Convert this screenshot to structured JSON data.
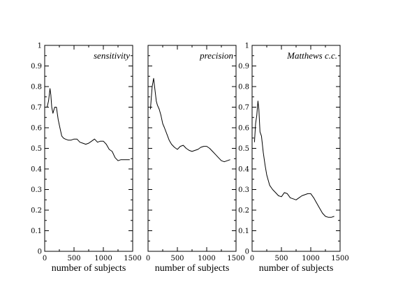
{
  "chart_data": [
    {
      "type": "line",
      "title": "sensitivity",
      "xlabel": "number of subjects",
      "ylabel": "",
      "xlim": [
        0,
        1500
      ],
      "ylim": [
        0,
        1
      ],
      "xticks": [
        0,
        500,
        1000,
        1500
      ],
      "xtick_labels": [
        "0",
        "500",
        "1000",
        "1500"
      ],
      "yticks": [
        0,
        0.1,
        0.2,
        0.3,
        0.4,
        0.5,
        0.6,
        0.7,
        0.8,
        0.9,
        1
      ],
      "ytick_labels": [
        "0",
        "0.1",
        "0.2",
        "0.3",
        "0.4",
        "0.5",
        "0.6",
        "0.7",
        "0.8",
        "0.9",
        "1"
      ],
      "x": [
        40,
        65,
        90,
        105,
        120,
        140,
        170,
        200,
        230,
        260,
        290,
        320,
        350,
        400,
        450,
        500,
        550,
        600,
        650,
        700,
        750,
        800,
        850,
        900,
        950,
        1000,
        1050,
        1100,
        1150,
        1200,
        1250,
        1300,
        1350,
        1400,
        1450
      ],
      "y": [
        0.7,
        0.73,
        0.79,
        0.76,
        0.7,
        0.67,
        0.7,
        0.7,
        0.64,
        0.6,
        0.56,
        0.55,
        0.545,
        0.54,
        0.54,
        0.545,
        0.545,
        0.53,
        0.525,
        0.52,
        0.525,
        0.535,
        0.545,
        0.53,
        0.535,
        0.535,
        0.52,
        0.495,
        0.485,
        0.455,
        0.44,
        0.445,
        0.445,
        0.445,
        0.445
      ],
      "grid": false
    },
    {
      "type": "line",
      "title": "precision",
      "xlabel": "number of subjects",
      "ylabel": "",
      "xlim": [
        0,
        1500
      ],
      "ylim": [
        0,
        1
      ],
      "xticks": [
        0,
        500,
        1000,
        1500
      ],
      "xtick_labels": [
        "0",
        "500",
        "1000",
        "1500"
      ],
      "yticks": [
        0,
        0.1,
        0.2,
        0.3,
        0.4,
        0.5,
        0.6,
        0.7,
        0.8,
        0.9,
        1
      ],
      "ytick_labels": [
        "",
        "",
        "",
        "",
        "",
        "",
        "",
        "",
        "",
        "",
        ""
      ],
      "x": [
        40,
        70,
        95,
        115,
        140,
        160,
        190,
        220,
        250,
        280,
        320,
        360,
        400,
        450,
        500,
        550,
        600,
        650,
        700,
        750,
        800,
        850,
        900,
        950,
        1000,
        1050,
        1100,
        1150,
        1200,
        1250,
        1300,
        1350,
        1400
      ],
      "y": [
        0.69,
        0.8,
        0.84,
        0.79,
        0.73,
        0.71,
        0.69,
        0.66,
        0.62,
        0.6,
        0.57,
        0.54,
        0.52,
        0.505,
        0.495,
        0.51,
        0.515,
        0.5,
        0.49,
        0.485,
        0.49,
        0.495,
        0.505,
        0.51,
        0.51,
        0.5,
        0.485,
        0.47,
        0.455,
        0.44,
        0.435,
        0.44,
        0.445
      ],
      "grid": false
    },
    {
      "type": "line",
      "title": "Matthews c.c.",
      "xlabel": "number of subjects",
      "ylabel": "",
      "xlim": [
        0,
        1500
      ],
      "ylim": [
        0,
        1
      ],
      "xticks": [
        0,
        500,
        1000,
        1500
      ],
      "xtick_labels": [
        "0",
        "500",
        "1000",
        "1500"
      ],
      "yticks": [
        0,
        0.1,
        0.2,
        0.3,
        0.4,
        0.5,
        0.6,
        0.7,
        0.8,
        0.9,
        1
      ],
      "ytick_labels": [
        "0",
        "0.1",
        "0.2",
        "0.3",
        "0.4",
        "0.5",
        "0.6",
        "0.7",
        "0.8",
        "0.9",
        "1"
      ],
      "x": [
        40,
        60,
        80,
        100,
        115,
        135,
        160,
        190,
        220,
        250,
        300,
        350,
        400,
        450,
        500,
        550,
        600,
        650,
        700,
        750,
        800,
        850,
        900,
        950,
        1000,
        1050,
        1100,
        1150,
        1200,
        1250,
        1300,
        1350,
        1400
      ],
      "y": [
        0.53,
        0.62,
        0.66,
        0.73,
        0.69,
        0.58,
        0.56,
        0.48,
        0.42,
        0.37,
        0.32,
        0.3,
        0.285,
        0.27,
        0.265,
        0.285,
        0.28,
        0.26,
        0.255,
        0.25,
        0.26,
        0.27,
        0.275,
        0.28,
        0.28,
        0.26,
        0.235,
        0.21,
        0.185,
        0.17,
        0.165,
        0.165,
        0.17
      ],
      "grid": false
    }
  ]
}
